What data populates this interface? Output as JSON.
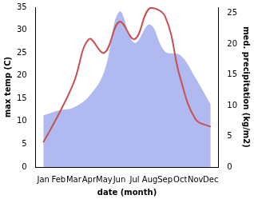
{
  "chart_data": {
    "type": "line",
    "x_label": "date (month)",
    "y_label": "max temp (C)",
    "y2_label": "med. precipitation (kg/m2)",
    "categories": [
      "Jan",
      "Feb",
      "Mar",
      "Apr",
      "May",
      "Jun",
      "Jul",
      "Aug",
      "Sep",
      "Oct",
      "Nov",
      "Dec"
    ],
    "series": [
      {
        "name": "med. precipitation (kg/m2)",
        "type": "area",
        "axis": "y2",
        "color": "#b0baf0",
        "values": [
          8.4,
          9.2,
          9.7,
          11.5,
          15.5,
          25.3,
          20.2,
          23.2,
          18.8,
          18.2,
          14.5,
          10.2
        ]
      },
      {
        "name": "max temp (C)",
        "type": "line",
        "color": "#c8504f",
        "values": [
          5.4,
          11.5,
          18.5,
          28.0,
          25.0,
          31.8,
          28.0,
          34.8,
          33.0,
          19.5,
          10.5,
          8.8
        ]
      }
    ],
    "ylim": [
      0,
      35
    ],
    "yticks": [
      0,
      5,
      10,
      15,
      20,
      25,
      30,
      35
    ],
    "y2lim": [
      0,
      26
    ],
    "y2ticks": [
      0,
      5,
      10,
      15,
      20,
      25
    ],
    "grid": false
  }
}
